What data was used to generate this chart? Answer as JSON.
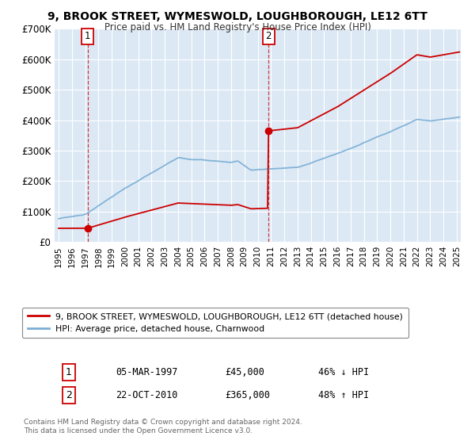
{
  "title": "9, BROOK STREET, WYMESWOLD, LOUGHBOROUGH, LE12 6TT",
  "subtitle": "Price paid vs. HM Land Registry's House Price Index (HPI)",
  "ylim": [
    0,
    700000
  ],
  "xlim_start": 1994.7,
  "xlim_end": 2025.3,
  "fig_bg_color": "#ffffff",
  "plot_bg_color": "#dce9f5",
  "grid_color": "#ffffff",
  "red_line_color": "#cc0000",
  "blue_line_color": "#7aadd4",
  "sale1_x": 1997.18,
  "sale1_y": 45000,
  "sale1_label": "1",
  "sale1_date": "05-MAR-1997",
  "sale1_price": "£45,000",
  "sale1_hpi": "46% ↓ HPI",
  "sale2_x": 2010.81,
  "sale2_y": 365000,
  "sale2_label": "2",
  "sale2_date": "22-OCT-2010",
  "sale2_price": "£365,000",
  "sale2_hpi": "48% ↑ HPI",
  "legend_line1": "9, BROOK STREET, WYMESWOLD, LOUGHBOROUGH, LE12 6TT (detached house)",
  "legend_line2": "HPI: Average price, detached house, Charnwood",
  "footer": "Contains HM Land Registry data © Crown copyright and database right 2024.\nThis data is licensed under the Open Government Licence v3.0.",
  "yticks": [
    0,
    100000,
    200000,
    300000,
    400000,
    500000,
    600000,
    700000
  ],
  "ytick_labels": [
    "£0",
    "£100K",
    "£200K",
    "£300K",
    "£400K",
    "£500K",
    "£600K",
    "£700K"
  ],
  "xticks": [
    1995,
    1996,
    1997,
    1998,
    1999,
    2000,
    2001,
    2002,
    2003,
    2004,
    2005,
    2006,
    2007,
    2008,
    2009,
    2010,
    2011,
    2012,
    2013,
    2014,
    2015,
    2016,
    2017,
    2018,
    2019,
    2020,
    2021,
    2022,
    2023,
    2024,
    2025
  ]
}
